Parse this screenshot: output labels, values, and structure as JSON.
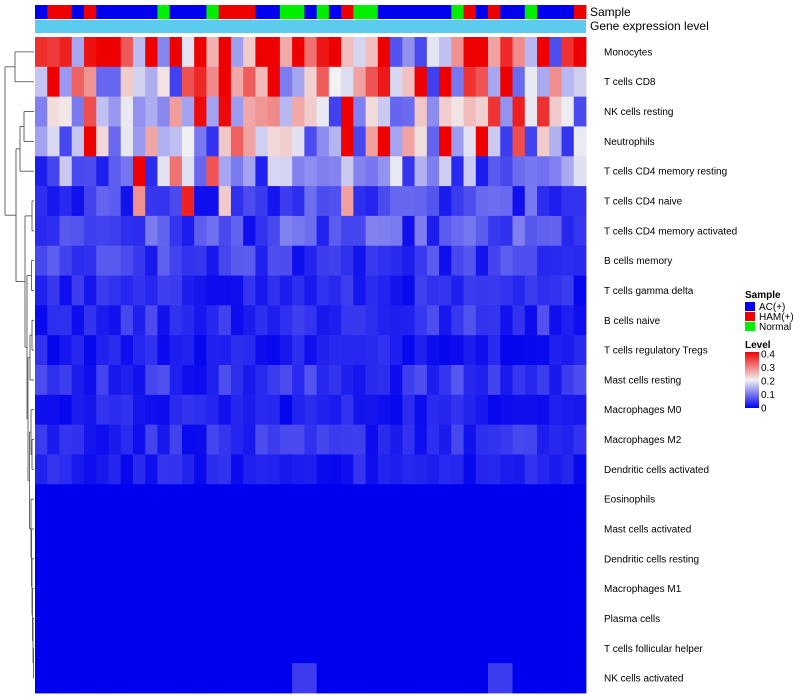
{
  "chart_data": {
    "type": "heatmap",
    "title": "",
    "n_samples": 45,
    "annotation_tracks": [
      {
        "name": "Sample",
        "label": "Sample"
      },
      {
        "name": "Gene expression level",
        "label": "Gene expression level",
        "color": "#5bcbee"
      }
    ],
    "sample_groups": [
      "AC(+)",
      "HAM(+)",
      "HAM(+)",
      "AC(+)",
      "HAM(+)",
      "AC(+)",
      "AC(+)",
      "AC(+)",
      "AC(+)",
      "AC(+)",
      "Normal",
      "AC(+)",
      "AC(+)",
      "AC(+)",
      "Normal",
      "HAM(+)",
      "HAM(+)",
      "HAM(+)",
      "AC(+)",
      "AC(+)",
      "Normal",
      "Normal",
      "AC(+)",
      "Normal",
      "AC(+)",
      "HAM(+)",
      "Normal",
      "Normal",
      "AC(+)",
      "AC(+)",
      "AC(+)",
      "AC(+)",
      "AC(+)",
      "AC(+)",
      "Normal",
      "HAM(+)",
      "AC(+)",
      "HAM(+)",
      "AC(+)",
      "AC(+)",
      "Normal",
      "AC(+)",
      "AC(+)",
      "AC(+)",
      "HAM(+)"
    ],
    "rows": [
      "Monocytes",
      "T cells CD8",
      "NK cells resting",
      "Neutrophils",
      "T cells CD4 memory resting",
      "T cells CD4 naive",
      "T cells CD4 memory activated",
      "B cells memory",
      "T cells gamma delta",
      "B cells naive",
      "T cells regulatory  Tregs",
      "Mast cells resting",
      "Macrophages M0",
      "Macrophages M2",
      "Dendritic cells activated",
      "Eosinophils",
      "Mast cells activated",
      "Dendritic cells resting",
      "Macrophages M1",
      "Plasma cells",
      "T cells follicular helper",
      "NK cells activated"
    ],
    "row_means": [
      0.29,
      0.25,
      0.16,
      0.15,
      0.11,
      0.055,
      0.06,
      0.045,
      0.03,
      0.04,
      0.025,
      0.04,
      0.025,
      0.035,
      0.025,
      0,
      0,
      0,
      0,
      0,
      0,
      0.004
    ],
    "color_scale": {
      "min": 0,
      "max": 0.4,
      "low": "#0000ee",
      "mid": "#f2f2f2",
      "high": "#ee0000"
    },
    "legend": {
      "sample_title": "Sample",
      "groups": [
        {
          "label": "AC(+)",
          "color": "#0000ee"
        },
        {
          "label": "HAM(+)",
          "color": "#ee0000"
        },
        {
          "label": "Normal",
          "color": "#00ee00"
        }
      ],
      "level_title": "Level",
      "ticks": [
        "0.4",
        "0.3",
        "0.2",
        "0.1",
        "0"
      ]
    }
  }
}
